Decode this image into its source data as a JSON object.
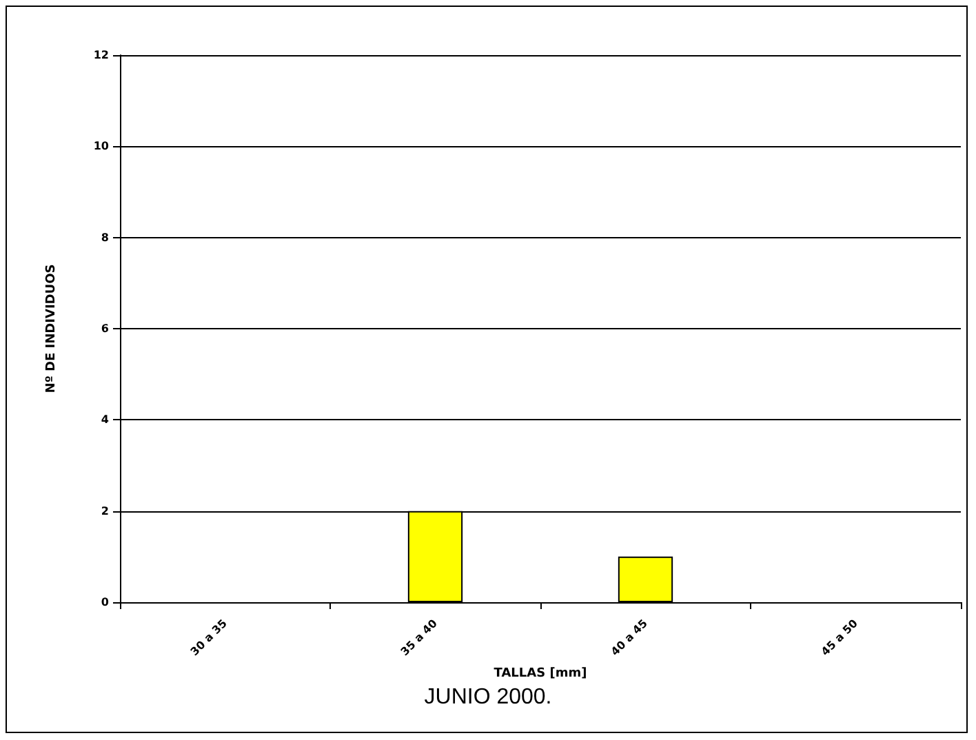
{
  "chart_data": {
    "type": "bar",
    "title": "JUNIO 2000.",
    "xlabel": "TALLAS [mm]",
    "ylabel": "Nº DE INDIVIDUOS",
    "categories": [
      "30 a 35",
      "35 a 40",
      "40 a 45",
      "45 a 50"
    ],
    "values": [
      0,
      2,
      1,
      0
    ],
    "color": "#ffff00",
    "ylim": [
      0,
      12
    ],
    "yticks": [
      0,
      2,
      4,
      6,
      8,
      10,
      12
    ],
    "grid": "y"
  }
}
